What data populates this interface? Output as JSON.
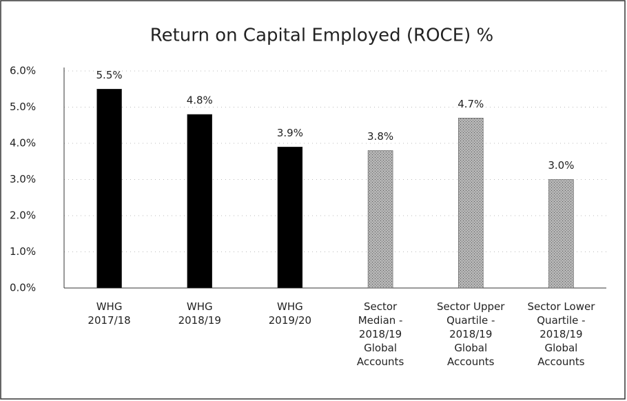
{
  "chart_data": {
    "type": "bar",
    "title": "Return on Capital Employed (ROCE) %",
    "categories": [
      "WHG\n2017/18",
      "WHG\n2018/19",
      "WHG\n2019/20",
      "Sector\nMedian -\n2018/19\nGlobal\nAccounts",
      "Sector Upper\nQuartile -\n2018/19\nGlobal\nAccounts",
      "Sector Lower\nQuartile -\n2018/19\nGlobal\nAccounts"
    ],
    "values": [
      5.5,
      4.8,
      3.9,
      3.8,
      4.7,
      3.0
    ],
    "value_labels": [
      "5.5%",
      "4.8%",
      "3.9%",
      "3.8%",
      "4.7%",
      "3.0%"
    ],
    "colors": [
      "#000000",
      "#000000",
      "#000000",
      "#b4b4b4",
      "#b4b4b4",
      "#b4b4b4"
    ],
    "ylim": [
      0,
      6
    ],
    "yticks": [
      {
        "value": 0,
        "label": "0.0%"
      },
      {
        "value": 1,
        "label": "1.0%"
      },
      {
        "value": 2,
        "label": "2.0%"
      },
      {
        "value": 3,
        "label": "3.0%"
      },
      {
        "value": 4,
        "label": "4.0%"
      },
      {
        "value": 5,
        "label": "5.0%"
      },
      {
        "value": 6,
        "label": "6.0%"
      }
    ],
    "grid": true
  }
}
